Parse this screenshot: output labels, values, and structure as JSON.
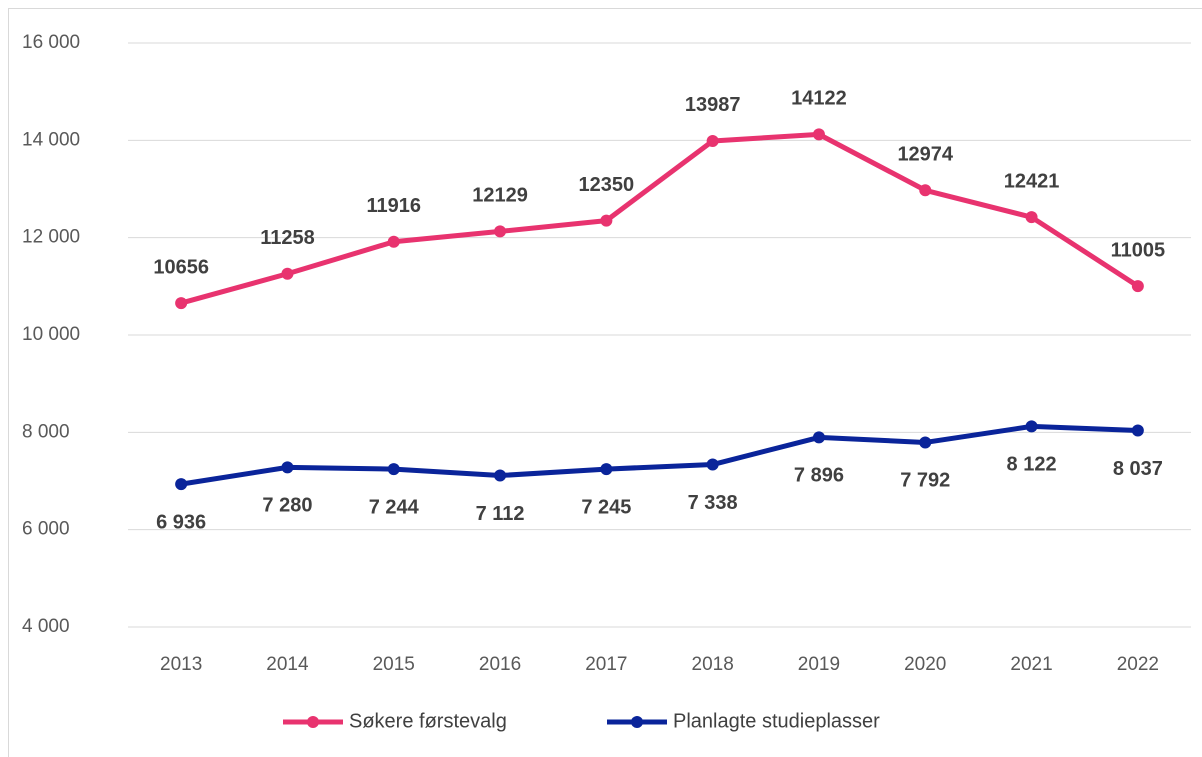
{
  "chart_data": {
    "type": "line",
    "categories": [
      "2013",
      "2014",
      "2015",
      "2016",
      "2017",
      "2018",
      "2019",
      "2020",
      "2021",
      "2022"
    ],
    "series": [
      {
        "name": "Søkere førstevalg",
        "color": "#e8336f",
        "values": [
          10656,
          11258,
          11916,
          12129,
          12350,
          13987,
          14122,
          12974,
          12421,
          11005
        ],
        "label_side": "above"
      },
      {
        "name": "Planlagte studieplasser",
        "color": "#0a249a",
        "values": [
          6936,
          7280,
          7244,
          7112,
          7245,
          7338,
          7896,
          7792,
          8122,
          8037
        ],
        "value_labels": [
          "6 936",
          "7 280",
          "7 244",
          "7 112",
          "7 245",
          "7 338",
          "7 896",
          "7 792",
          "8 122",
          "8 037"
        ],
        "label_side": "below"
      }
    ],
    "ylim": [
      4000,
      16000
    ],
    "yticks": [
      {
        "value": 4000,
        "label": "4 000"
      },
      {
        "value": 6000,
        "label": "6 000"
      },
      {
        "value": 8000,
        "label": "8 000"
      },
      {
        "value": 10000,
        "label": "10 000"
      },
      {
        "value": 12000,
        "label": "12 000"
      },
      {
        "value": 14000,
        "label": "14 000"
      },
      {
        "value": 16000,
        "label": "16 000"
      }
    ],
    "grid": true,
    "legend": "bottom"
  }
}
